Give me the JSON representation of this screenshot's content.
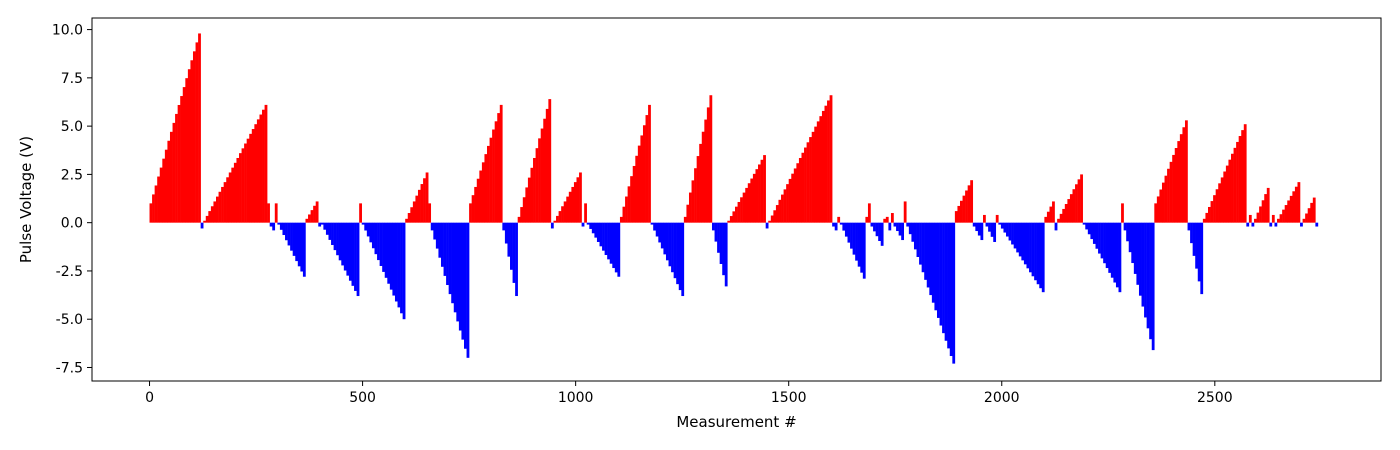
{
  "chart_data": {
    "type": "bar",
    "xlabel": "Measurement #",
    "ylabel": "Pulse Voltage (V)",
    "xlim": [
      -135,
      2890
    ],
    "ylim": [
      -8.2,
      10.6
    ],
    "x_ticks": [
      0,
      500,
      1000,
      1500,
      2000,
      2500
    ],
    "y_ticks": [
      -7.5,
      -5.0,
      -2.5,
      0.0,
      2.5,
      5.0,
      7.5,
      10.0
    ],
    "grid": false,
    "legend": "none",
    "bar_step": 6,
    "positive_color": "#ff0000",
    "negative_color": "#0000ff",
    "segments": [
      {
        "x0": 0,
        "x1": 120,
        "v0": 1.0,
        "v1": 9.8
      },
      {
        "x0": 120,
        "x1": 126,
        "v0": -0.3,
        "v1": -0.3
      },
      {
        "x0": 126,
        "x1": 276,
        "v0": 0.1,
        "v1": 6.1
      },
      {
        "x0": 276,
        "x1": 282,
        "v0": 1.0,
        "v1": 1.0
      },
      {
        "x0": 282,
        "x1": 294,
        "v0": -0.2,
        "v1": -0.4
      },
      {
        "x0": 294,
        "x1": 300,
        "v0": 1.0,
        "v1": 1.0
      },
      {
        "x0": 300,
        "x1": 366,
        "v0": -0.1,
        "v1": -2.8
      },
      {
        "x0": 366,
        "x1": 396,
        "v0": 0.2,
        "v1": 1.1
      },
      {
        "x0": 396,
        "x1": 402,
        "v0": -0.2,
        "v1": -0.2
      },
      {
        "x0": 402,
        "x1": 492,
        "v0": -0.1,
        "v1": -3.8
      },
      {
        "x0": 492,
        "x1": 498,
        "v0": 1.0,
        "v1": 1.0
      },
      {
        "x0": 498,
        "x1": 600,
        "v0": -0.1,
        "v1": -5.0
      },
      {
        "x0": 600,
        "x1": 654,
        "v0": 0.2,
        "v1": 2.6
      },
      {
        "x0": 654,
        "x1": 660,
        "v0": 1.0,
        "v1": 1.0
      },
      {
        "x0": 660,
        "x1": 750,
        "v0": -0.4,
        "v1": -7.0
      },
      {
        "x0": 750,
        "x1": 828,
        "v0": 1.0,
        "v1": 6.1
      },
      {
        "x0": 828,
        "x1": 864,
        "v0": -0.4,
        "v1": -3.8
      },
      {
        "x0": 864,
        "x1": 942,
        "v0": 0.3,
        "v1": 6.4
      },
      {
        "x0": 942,
        "x1": 948,
        "v0": -0.3,
        "v1": -0.3
      },
      {
        "x0": 948,
        "x1": 1014,
        "v0": 0.1,
        "v1": 2.6
      },
      {
        "x0": 1014,
        "x1": 1020,
        "v0": -0.2,
        "v1": -0.2
      },
      {
        "x0": 1020,
        "x1": 1026,
        "v0": 1.0,
        "v1": 1.0
      },
      {
        "x0": 1026,
        "x1": 1104,
        "v0": -0.1,
        "v1": -2.8
      },
      {
        "x0": 1104,
        "x1": 1176,
        "v0": 0.3,
        "v1": 6.1
      },
      {
        "x0": 1176,
        "x1": 1254,
        "v0": -0.1,
        "v1": -3.8
      },
      {
        "x0": 1254,
        "x1": 1320,
        "v0": 0.3,
        "v1": 6.6
      },
      {
        "x0": 1320,
        "x1": 1356,
        "v0": -0.4,
        "v1": -3.3
      },
      {
        "x0": 1356,
        "x1": 1446,
        "v0": 0.1,
        "v1": 3.5
      },
      {
        "x0": 1446,
        "x1": 1452,
        "v0": -0.3,
        "v1": -0.3
      },
      {
        "x0": 1452,
        "x1": 1602,
        "v0": 0.1,
        "v1": 6.6
      },
      {
        "x0": 1602,
        "x1": 1614,
        "v0": -0.2,
        "v1": -0.4
      },
      {
        "x0": 1614,
        "x1": 1620,
        "v0": 0.3,
        "v1": 0.3
      },
      {
        "x0": 1620,
        "x1": 1680,
        "v0": -0.1,
        "v1": -2.9
      },
      {
        "x0": 1680,
        "x1": 1686,
        "v0": 0.3,
        "v1": 0.3
      },
      {
        "x0": 1686,
        "x1": 1692,
        "v0": 1.0,
        "v1": 1.0
      },
      {
        "x0": 1692,
        "x1": 1722,
        "v0": -0.2,
        "v1": -1.2
      },
      {
        "x0": 1722,
        "x1": 1734,
        "v0": 0.2,
        "v1": 0.3
      },
      {
        "x0": 1734,
        "x1": 1740,
        "v0": -0.4,
        "v1": -0.4
      },
      {
        "x0": 1740,
        "x1": 1746,
        "v0": 0.5,
        "v1": 0.5
      },
      {
        "x0": 1746,
        "x1": 1770,
        "v0": -0.2,
        "v1": -0.9
      },
      {
        "x0": 1770,
        "x1": 1776,
        "v0": 1.1,
        "v1": 1.1
      },
      {
        "x0": 1776,
        "x1": 1890,
        "v0": -0.2,
        "v1": -7.3
      },
      {
        "x0": 1890,
        "x1": 1932,
        "v0": 0.6,
        "v1": 2.2
      },
      {
        "x0": 1932,
        "x1": 1956,
        "v0": -0.2,
        "v1": -0.9
      },
      {
        "x0": 1956,
        "x1": 1962,
        "v0": 0.4,
        "v1": 0.4
      },
      {
        "x0": 1962,
        "x1": 1986,
        "v0": -0.2,
        "v1": -1.0
      },
      {
        "x0": 1986,
        "x1": 1992,
        "v0": 0.4,
        "v1": 0.4
      },
      {
        "x0": 1992,
        "x1": 2100,
        "v0": -0.1,
        "v1": -3.6
      },
      {
        "x0": 2100,
        "x1": 2124,
        "v0": 0.3,
        "v1": 1.1
      },
      {
        "x0": 2124,
        "x1": 2130,
        "v0": -0.4,
        "v1": -0.4
      },
      {
        "x0": 2130,
        "x1": 2190,
        "v0": 0.2,
        "v1": 2.5
      },
      {
        "x0": 2190,
        "x1": 2280,
        "v0": -0.1,
        "v1": -3.6
      },
      {
        "x0": 2280,
        "x1": 2286,
        "v0": 1.0,
        "v1": 1.0
      },
      {
        "x0": 2286,
        "x1": 2358,
        "v0": -0.4,
        "v1": -6.6
      },
      {
        "x0": 2358,
        "x1": 2436,
        "v0": 1.0,
        "v1": 5.3
      },
      {
        "x0": 2436,
        "x1": 2472,
        "v0": -0.4,
        "v1": -3.7
      },
      {
        "x0": 2472,
        "x1": 2574,
        "v0": 0.2,
        "v1": 5.1
      },
      {
        "x0": 2574,
        "x1": 2580,
        "v0": -0.2,
        "v1": -0.2
      },
      {
        "x0": 2580,
        "x1": 2586,
        "v0": 0.4,
        "v1": 0.4
      },
      {
        "x0": 2586,
        "x1": 2592,
        "v0": -0.2,
        "v1": -0.2
      },
      {
        "x0": 2592,
        "x1": 2628,
        "v0": 0.2,
        "v1": 1.8
      },
      {
        "x0": 2628,
        "x1": 2634,
        "v0": -0.2,
        "v1": -0.2
      },
      {
        "x0": 2634,
        "x1": 2640,
        "v0": 0.4,
        "v1": 0.4
      },
      {
        "x0": 2640,
        "x1": 2646,
        "v0": -0.2,
        "v1": -0.2
      },
      {
        "x0": 2646,
        "x1": 2700,
        "v0": 0.2,
        "v1": 2.1
      },
      {
        "x0": 2700,
        "x1": 2706,
        "v0": -0.2,
        "v1": -0.2
      },
      {
        "x0": 2706,
        "x1": 2736,
        "v0": 0.2,
        "v1": 1.3
      },
      {
        "x0": 2736,
        "x1": 2742,
        "v0": -0.2,
        "v1": -0.2
      }
    ]
  }
}
